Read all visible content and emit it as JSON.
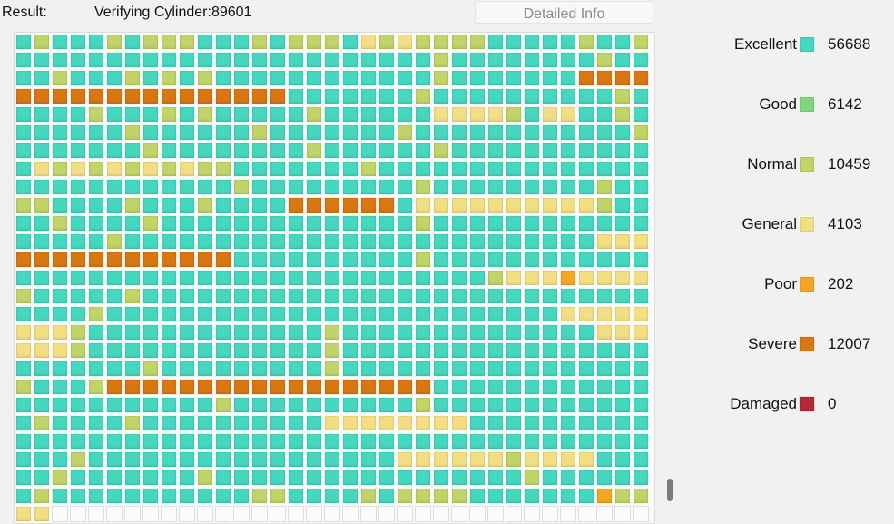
{
  "header": {
    "result_label": "Result:",
    "status": "Verifying Cylinder:89601",
    "detail_button": "Detailed Info"
  },
  "legend": [
    {
      "label": "Excellent",
      "count": "56688",
      "class": "excellent",
      "color": "#46d8be"
    },
    {
      "label": "Good",
      "count": "6142",
      "class": "good",
      "color": "#7fd77b"
    },
    {
      "label": "Normal",
      "count": "10459",
      "class": "normal",
      "color": "#c0d46a"
    },
    {
      "label": "General",
      "count": "4103",
      "class": "general",
      "color": "#f2df84"
    },
    {
      "label": "Poor",
      "count": "202",
      "class": "poor",
      "color": "#f2a623"
    },
    {
      "label": "Severe",
      "count": "12007",
      "class": "severe",
      "color": "#d97712"
    },
    {
      "label": "Damaged",
      "count": "0",
      "class": "damaged",
      "color": "#b52a3a"
    }
  ],
  "grid": {
    "rows": [
      "ENEEENENNNEEENENNNEGNGNNNNEEEEENEEN",
      "EEEEEEEEEEEEEEEEEEEEEEENEEEEEEEENEE",
      "EENEEENENENEEEEEEEEEEEENEEEEEEESSSS",
      "SSSSSSSSSSSSSSSEEEEEEENEEEEEEEEEENE",
      "EEEENEEENENEEEEENEEEEEEGGGGNEGGEENE",
      "EEEEEENEEEEEENEEEEEEENEEEEEEEEEEEEN",
      "EEEEEEENEEEEEEEENEEEEEENEEEEEEEEEEE",
      "EGNGNGNGNGNNEEEEEEENEEEEEEEEEEEEEEE",
      "EEEEEEEEEEEENEEEEEEEEENEEEEEEEEENEE",
      "NNEEEENEEENEEEESSSSSSEGGGGGGGGGGNEE",
      "EENEEEENEEEEEEEEEEEEEENEEEEEEEEEEEE",
      "EEEEENEEEEEEEEEEEEEEEEEEEEEEEEEEGGGS",
      "SSSSSSSSSSSEEEEEEEEEENEEEEEEEEEEEEE",
      "EEEEEEEEEEEEEEEEEEEEEEEEENGGGPGGGGN",
      "EEEEENEEEEEEEEEEEEEEEEEEEEEEEEEEEEE",
      "EEENEEEEEEEEEEEEEEEEEEEEEEEEEGGGGGG",
      "GGNEEEEEEEEEEEEENEEEEEEEEEEEEEEGGGG",
      "GGNEEEEEEEEEEEEENEEEEEEEEEEEEEEEEEE",
      "EEEEEENEEEEEEEEENEEEEEEEEEEEEEEEEEN",
      "EEENSSSSSSSSSSSSSSSSSSEEEEEEEEEEEEE",
      "EEEEEEEEEENEEEEEEEEEENEEEEEEEEEEEEE",
      "NEEEENEEEEEEEEEEGGGGGGGGEEEEEEEEEEE",
      "EEEEEEEEEEEEEEEEEEEEEEEEEEEEEEEEEEE",
      "EENEEEEEEEEEEEEEEEEEGGGGGGNGGGGEEEE",
      "ENEEEEEEENEEEEEEEEEEEEEEEEENEEEEEEE",
      "NEEEEEEEEEEENNEEEENENNNNEEEEEEEPNNG",
      "GWWWWWWWWWWWWWWWWWWWWWWWWWWWWWWWWWW"
    ],
    "codes": {
      "E": "excellent",
      "G": "general",
      "N": "normal",
      "P": "poor",
      "S": "severe",
      "D": "damaged",
      "O": "good",
      "W": "empty"
    }
  }
}
